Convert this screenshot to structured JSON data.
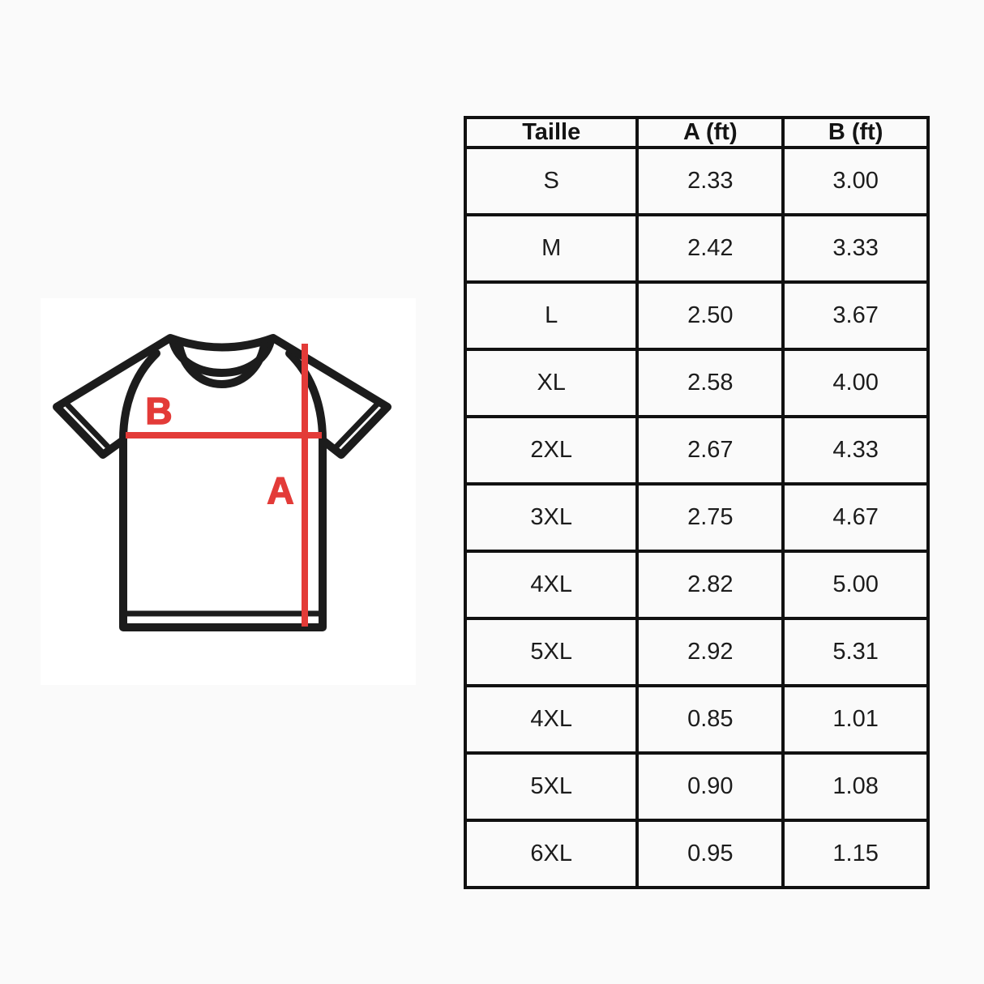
{
  "diagram": {
    "label_a": "A",
    "label_b": "B",
    "accent_color": "#e33b38",
    "outline_color": "#1c1c1c"
  },
  "size_chart": {
    "columns": [
      "Taille",
      "A (ft)",
      "B (ft)"
    ],
    "rows": [
      {
        "taille": "S",
        "a": "2.33",
        "b": "3.00"
      },
      {
        "taille": "M",
        "a": "2.42",
        "b": "3.33"
      },
      {
        "taille": "L",
        "a": "2.50",
        "b": "3.67"
      },
      {
        "taille": "XL",
        "a": "2.58",
        "b": "4.00"
      },
      {
        "taille": "2XL",
        "a": "2.67",
        "b": "4.33"
      },
      {
        "taille": "3XL",
        "a": "2.75",
        "b": "4.67"
      },
      {
        "taille": "4XL",
        "a": "2.82",
        "b": "5.00"
      },
      {
        "taille": "5XL",
        "a": "2.92",
        "b": "5.31"
      },
      {
        "taille": "4XL",
        "a": "0.85",
        "b": "1.01"
      },
      {
        "taille": "5XL",
        "a": "0.90",
        "b": "1.08"
      },
      {
        "taille": "6XL",
        "a": "0.95",
        "b": "1.15"
      }
    ]
  }
}
